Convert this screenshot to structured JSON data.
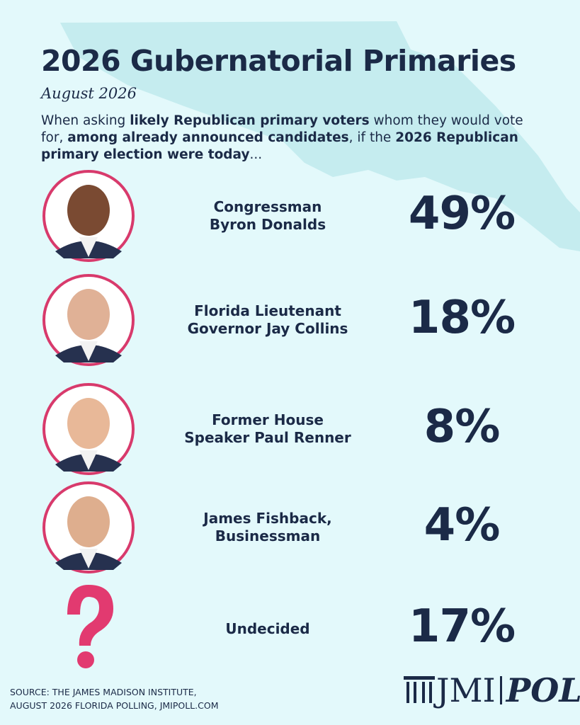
{
  "header": {
    "title": "2026 Gubernatorial Primaries",
    "date": "August 2026",
    "description": [
      {
        "text": "When asking ",
        "bold": false
      },
      {
        "text": "likely Republican primary voters",
        "bold": true
      },
      {
        "text": " whom they would vote for, ",
        "bold": false
      },
      {
        "text": "among already announced candidates",
        "bold": true
      },
      {
        "text": ", if the ",
        "bold": false
      },
      {
        "text": "2026 Republican primary election were today",
        "bold": true
      },
      {
        "text": "...",
        "bold": false
      }
    ]
  },
  "results": [
    {
      "name": [
        "Congressman",
        "Byron Donalds"
      ],
      "share": "49%",
      "photo": true
    },
    {
      "name": [
        "Florida Lieutenant",
        "Governor Jay Collins"
      ],
      "share": "18%",
      "photo": true
    },
    {
      "name": [
        "Former House",
        "Speaker Paul Renner"
      ],
      "share": "8%",
      "photo": true
    },
    {
      "name": [
        "James Fishback,",
        "Businessman"
      ],
      "share": "4%",
      "photo": true
    },
    {
      "name": [
        "Undecided"
      ],
      "share": "17%",
      "photo": false
    }
  ],
  "footer": {
    "source": [
      "SOURCE: THE JAMES MADISON INSTITUTE,",
      "AUGUST 2026 FLORIDA POLLING, JMIPOLL.COM"
    ],
    "logo": {
      "left": "JMI",
      "right": "POLL"
    }
  }
}
